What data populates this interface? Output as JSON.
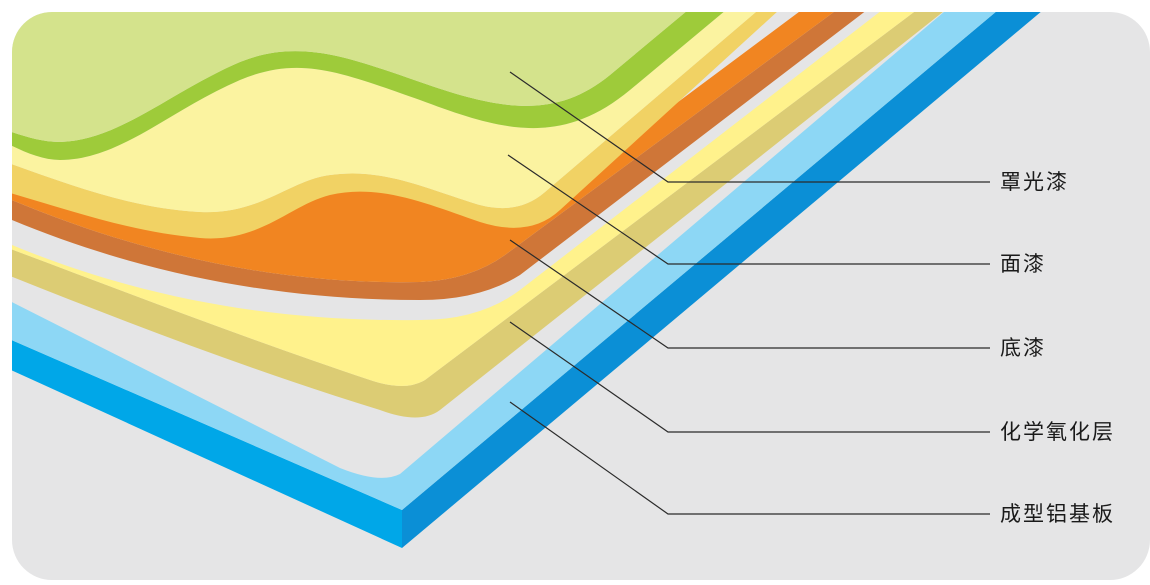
{
  "diagram": {
    "background_color": "#e5e5e6",
    "colors": {
      "clear_coat": "#d4e38c",
      "clear_coat_edge": "#9ecb3a",
      "top_coat": "#fbf3a0",
      "top_coat_edge": "#f1d264",
      "primer": "#f18521",
      "primer_edge": "#cf7638",
      "conversion_layer": "#fff28c",
      "conversion_layer_edge": "#dccc74",
      "substrate_top": "#8dd7f5",
      "substrate_side": "#00a7e8",
      "substrate_edge": "#0b8fd6"
    },
    "labels": {
      "clear_coat": "罩光漆",
      "top_coat": "面漆",
      "primer": "底漆",
      "conversion_layer": "化学氧化层",
      "substrate": "成型铝基板"
    }
  }
}
